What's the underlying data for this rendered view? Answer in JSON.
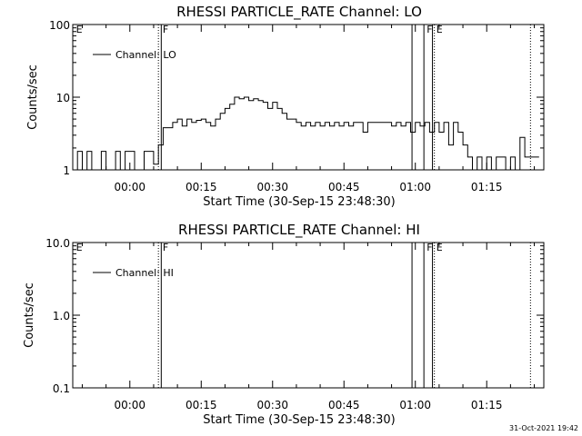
{
  "chart_data": [
    {
      "type": "line",
      "title": "RHESSI PARTICLE_RATE Channel: LO",
      "xlabel": "Start Time (30-Sep-15 23:48:30)",
      "ylabel": "Counts/sec",
      "y_scale": "log",
      "ylim": [
        1,
        100
      ],
      "xlim_minutes": [
        -12,
        87
      ],
      "y_ticks": [
        {
          "value": 1,
          "label": "1"
        },
        {
          "value": 10,
          "label": "10"
        },
        {
          "value": 100,
          "label": "100"
        }
      ],
      "x_ticks": [
        {
          "value": 0,
          "label": "00:00"
        },
        {
          "value": 15,
          "label": "00:15"
        },
        {
          "value": 30,
          "label": "00:30"
        },
        {
          "value": 45,
          "label": "00:45"
        },
        {
          "value": 60,
          "label": "01:00"
        },
        {
          "value": 75,
          "label": "01:15"
        }
      ],
      "legend": {
        "placement": "top-left",
        "label": "Channel: LO"
      },
      "flag_lines": [
        {
          "minutes": 6.0,
          "style": "dotted"
        },
        {
          "minutes": 6.6,
          "style": "solid"
        },
        {
          "minutes": 59.3,
          "style": "solid"
        },
        {
          "minutes": 61.8,
          "style": "solid"
        },
        {
          "minutes": 63.6,
          "style": "solid"
        },
        {
          "minutes": 64.0,
          "style": "dotted"
        },
        {
          "minutes": 84.2,
          "style": "dotted"
        }
      ],
      "flag_labels": [
        {
          "minutes": -11.5,
          "text": "E"
        },
        {
          "minutes": 6.7,
          "text": "F"
        },
        {
          "minutes": 62.2,
          "text": "F"
        },
        {
          "minutes": 64.2,
          "text": "E"
        }
      ],
      "series": [
        {
          "name": "Channel: LO",
          "x": [
            -12,
            -11,
            -10,
            -9,
            -8,
            -7,
            -6,
            -5,
            -4,
            -3,
            -2,
            -1,
            0,
            1,
            2,
            3,
            4,
            5,
            6,
            7,
            8,
            9,
            10,
            11,
            12,
            13,
            14,
            15,
            16,
            17,
            18,
            19,
            20,
            21,
            22,
            23,
            24,
            25,
            26,
            27,
            28,
            29,
            30,
            31,
            32,
            33,
            34,
            35,
            36,
            37,
            38,
            39,
            40,
            41,
            42,
            43,
            44,
            45,
            46,
            47,
            48,
            49,
            50,
            51,
            52,
            53,
            54,
            55,
            56,
            57,
            58,
            59,
            60,
            61,
            62,
            63,
            64,
            65,
            66,
            67,
            68,
            69,
            70,
            71,
            72,
            73,
            74,
            75,
            76,
            77,
            78,
            79,
            80,
            81,
            82,
            83,
            84,
            85
          ],
          "y": [
            1,
            1.8,
            1,
            1.8,
            1,
            1,
            1.8,
            1,
            1,
            1.8,
            1,
            1.8,
            1.8,
            1,
            1,
            1.8,
            1.8,
            1.2,
            2.2,
            3.8,
            3.8,
            4.5,
            5,
            4,
            5,
            4.5,
            4.8,
            5,
            4.5,
            4,
            5,
            6,
            7,
            8,
            10,
            9.5,
            10,
            9,
            9.5,
            9,
            8.5,
            7,
            8.5,
            7,
            6,
            5,
            5,
            4.5,
            4,
            4.5,
            4,
            4.5,
            4,
            4.5,
            4,
            4.5,
            4,
            4.5,
            4,
            4.5,
            4.5,
            3.3,
            4.5,
            4.5,
            4.5,
            4.5,
            4.5,
            4,
            4.5,
            4,
            4.5,
            3.3,
            4.5,
            4,
            4.5,
            3.3,
            4.5,
            3.3,
            4.5,
            2.2,
            4.5,
            3.3,
            2.2,
            1.5,
            1,
            1.5,
            1,
            1.5,
            1,
            1.5,
            1.5,
            1,
            1.5,
            1,
            2.8,
            1.5,
            1.5,
            1.5
          ]
        }
      ]
    },
    {
      "type": "line",
      "title": "RHESSI PARTICLE_RATE Channel: HI",
      "xlabel": "Start Time (30-Sep-15 23:48:30)",
      "ylabel": "Counts/sec",
      "y_scale": "log",
      "ylim": [
        0.1,
        10
      ],
      "xlim_minutes": [
        -12,
        87
      ],
      "y_ticks": [
        {
          "value": 0.1,
          "label": "0.1"
        },
        {
          "value": 1,
          "label": "1.0"
        },
        {
          "value": 10,
          "label": "10.0"
        }
      ],
      "x_ticks": [
        {
          "value": 0,
          "label": "00:00"
        },
        {
          "value": 15,
          "label": "00:15"
        },
        {
          "value": 30,
          "label": "00:30"
        },
        {
          "value": 45,
          "label": "00:45"
        },
        {
          "value": 60,
          "label": "01:00"
        },
        {
          "value": 75,
          "label": "01:15"
        }
      ],
      "legend": {
        "placement": "top-left",
        "label": "Channel: HI"
      },
      "flag_lines": [
        {
          "minutes": 6.0,
          "style": "dotted"
        },
        {
          "minutes": 6.6,
          "style": "solid"
        },
        {
          "minutes": 59.3,
          "style": "solid"
        },
        {
          "minutes": 61.8,
          "style": "solid"
        },
        {
          "minutes": 63.6,
          "style": "solid"
        },
        {
          "minutes": 64.0,
          "style": "dotted"
        },
        {
          "minutes": 84.2,
          "style": "dotted"
        }
      ],
      "flag_labels": [
        {
          "minutes": -11.5,
          "text": "E"
        },
        {
          "minutes": 6.7,
          "text": "F"
        },
        {
          "minutes": 62.2,
          "text": "F"
        },
        {
          "minutes": 64.2,
          "text": "E"
        }
      ],
      "series": [
        {
          "name": "Channel: HI",
          "x": [],
          "y": []
        }
      ]
    }
  ],
  "timestamp": "31-Oct-2021 19:42"
}
